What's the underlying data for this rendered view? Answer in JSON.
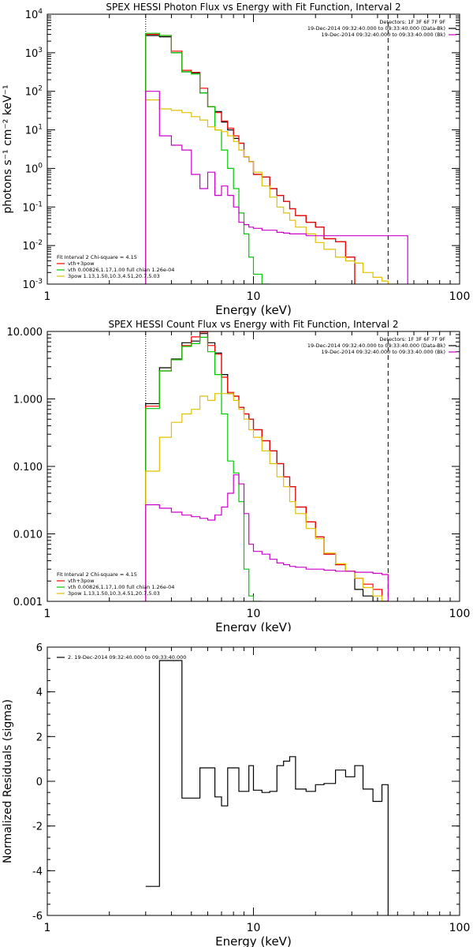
{
  "chart_data": [
    {
      "type": "line",
      "title": "SPEX HESSI Photon Flux vs Energy with Fit Function, Interval 2",
      "xlabel": "Energy (keV)",
      "ylabel": "photons s⁻¹ cm⁻² keV⁻¹",
      "xscale": "log",
      "yscale": "log",
      "xlim": [
        1,
        100
      ],
      "ylim": [
        0.001,
        10000
      ],
      "xticks": [
        {
          "v": 1,
          "label": "1"
        },
        {
          "v": 10,
          "label": "10"
        },
        {
          "v": 100,
          "label": "100"
        }
      ],
      "yticks": [
        {
          "v": 0.001,
          "base": "10",
          "exp": "-3"
        },
        {
          "v": 0.01,
          "base": "10",
          "exp": "-2"
        },
        {
          "v": 0.1,
          "base": "10",
          "exp": "-1"
        },
        {
          "v": 1,
          "base": "10",
          "exp": "0"
        },
        {
          "v": 10,
          "base": "10",
          "exp": "1"
        },
        {
          "v": 100,
          "base": "10",
          "exp": "2"
        },
        {
          "v": 1000,
          "base": "10",
          "exp": "3"
        },
        {
          "v": 10000,
          "base": "10",
          "exp": "4"
        }
      ],
      "vlines": [
        {
          "x": 3.0,
          "style": "dotted"
        },
        {
          "x": 45,
          "style": "dashed"
        }
      ],
      "header_lines": [
        "Detectors: 1F 3F 6F 7F 9F",
        "19-Dec-2014 09:32:40.000 to 09:33:40.000 (Data-Bk)",
        "19-Dec-2014 09:32:40.000 to 09:33:40.000 (Bk)"
      ],
      "header_colors": [
        "#000000",
        "#000000",
        "#cc00cc"
      ],
      "legend_lines": [
        "Fit Interval 2   Chi-square = 4.15",
        "vth+3pow",
        "vth 0.00826,1.17,1.00  full chian 1.26e-04",
        "3pow 1.13,1.50,10.3,4.51,20.7,5.03"
      ],
      "legend_colors": [
        "#000000",
        "#ff0000",
        "#00c800",
        "#e0c000"
      ],
      "edges": [
        3.0,
        3.5,
        4.0,
        4.5,
        5.0,
        5.5,
        6.0,
        6.5,
        7.0,
        7.5,
        8.0,
        8.5,
        9.0,
        9.5,
        10.0,
        11.0,
        12.0,
        13.0,
        14.0,
        15.0,
        16.0,
        18.0,
        20.0,
        22.0,
        25.0,
        28.0,
        31.0,
        34.0,
        38.0,
        42.0,
        45.0,
        50.0,
        56.0
      ],
      "series": [
        {
          "name": "data",
          "color": "#000000",
          "values": [
            2800,
            2600,
            1000,
            320,
            300,
            90,
            40,
            30,
            16,
            10,
            6,
            4.5,
            2,
            1.5,
            0.7,
            0.6,
            0.3,
            0.2,
            0.14,
            0.09,
            0.06,
            0.04,
            0.03,
            0.015,
            0.0125,
            0.005,
            null,
            null,
            null,
            null,
            null,
            null
          ]
        },
        {
          "name": "vth+3pow",
          "color": "#ff0000",
          "values": [
            3000,
            2800,
            1100,
            350,
            310,
            120,
            40,
            28,
            17,
            11,
            7,
            4.5,
            2,
            1.5,
            0.7,
            0.6,
            0.3,
            0.2,
            0.14,
            0.09,
            0.06,
            0.04,
            0.03,
            0.015,
            0.0125,
            0.005,
            null,
            null,
            null,
            null,
            null,
            null
          ]
        },
        {
          "name": "vth",
          "color": "#00c800",
          "values": [
            3200,
            2800,
            1000,
            320,
            280,
            90,
            40,
            10,
            3,
            1,
            0.3,
            0.07,
            0.02,
            0.005,
            0.0018,
            0.001,
            null,
            null,
            null,
            null,
            null,
            null,
            null,
            null,
            null,
            null,
            null,
            null,
            null,
            null,
            null,
            null
          ]
        },
        {
          "name": "3pow",
          "color": "#e0c000",
          "values": [
            60,
            35,
            32,
            28,
            22,
            18,
            12,
            10,
            9,
            7,
            5,
            3,
            2,
            1.5,
            0.8,
            0.35,
            0.18,
            0.1,
            0.07,
            0.045,
            0.03,
            0.02,
            0.012,
            0.008,
            0.005,
            0.004,
            0.0035,
            0.002,
            0.0015,
            0.0012,
            0.0009,
            null
          ]
        },
        {
          "name": "background",
          "color": "#cc00cc",
          "values": [
            100,
            7,
            4,
            3,
            0.7,
            0.3,
            0.8,
            0.2,
            0.35,
            0.2,
            0.1,
            0.04,
            0.035,
            0.03,
            0.028,
            0.025,
            0.025,
            0.022,
            0.021,
            0.02,
            0.02,
            0.018,
            0.018,
            0.018,
            0.018,
            0.018,
            0.018,
            0.018,
            0.018,
            0.018,
            0.018,
            0.018
          ]
        }
      ]
    },
    {
      "type": "line",
      "title": "SPEX HESSI Count Flux vs Energy with Fit Function, Interval 2",
      "xlabel": "Energy (keV)",
      "ylabel": "",
      "xscale": "log",
      "yscale": "log",
      "xlim": [
        1,
        100
      ],
      "ylim": [
        0.001,
        10
      ],
      "xticks": [
        {
          "v": 1,
          "label": "1"
        },
        {
          "v": 10,
          "label": "10"
        },
        {
          "v": 100,
          "label": "100"
        }
      ],
      "yticks": [
        {
          "v": 0.001,
          "label": "0.001"
        },
        {
          "v": 0.01,
          "label": "0.010"
        },
        {
          "v": 0.1,
          "label": "0.100"
        },
        {
          "v": 1,
          "label": "1.000"
        },
        {
          "v": 10,
          "label": "10.000"
        }
      ],
      "vlines": [
        {
          "x": 3.0,
          "style": "dotted"
        },
        {
          "x": 45,
          "style": "dashed"
        }
      ],
      "header_lines": [
        "Detectors: 1F 3F 6F 7F 9F",
        "19-Dec-2014 09:32:40.000 to 09:33:40.000 (Data-Bk)",
        "19-Dec-2014 09:32:40.000 to 09:33:40.000 (Bk)"
      ],
      "header_colors": [
        "#000000",
        "#000000",
        "#cc00cc"
      ],
      "legend_lines": [
        "Fit Interval 2   Chi-square = 4.15",
        "vth+3pow",
        "vth 0.00826,1.17,1.00  full chian 1.26e-04",
        "3pow 1.13,1.50,10.3,4.51,20.7,5.03"
      ],
      "legend_colors": [
        "#000000",
        "#ff0000",
        "#00c800",
        "#e0c000"
      ],
      "edges": [
        3.0,
        3.5,
        4.0,
        4.5,
        5.0,
        5.5,
        6.0,
        6.5,
        7.0,
        7.5,
        8.0,
        8.5,
        9.0,
        9.5,
        10.0,
        11.0,
        12.0,
        13.0,
        14.0,
        15.0,
        16.0,
        18.0,
        20.0,
        22.0,
        25.0,
        28.0,
        31.0,
        34.0,
        38.0,
        42.0,
        45.0
      ],
      "series": [
        {
          "name": "data",
          "color": "#000000",
          "values": [
            0.85,
            2.9,
            3.9,
            6.8,
            7.2,
            9.3,
            6.8,
            4.8,
            2.3,
            1.2,
            1.1,
            0.75,
            0.6,
            0.5,
            0.35,
            0.24,
            0.17,
            0.11,
            0.07,
            0.05,
            0.025,
            0.015,
            0.009,
            0.005,
            0.0035,
            0.0028,
            0.0015,
            0.0012,
            0.001,
            0.001
          ]
        },
        {
          "name": "vth+3pow",
          "color": "#ff0000",
          "values": [
            0.78,
            2.6,
            3.8,
            6.2,
            8.3,
            9.8,
            6.2,
            4.6,
            2.1,
            1.25,
            1.1,
            0.75,
            0.6,
            0.5,
            0.35,
            0.24,
            0.17,
            0.11,
            0.07,
            0.05,
            0.025,
            0.015,
            0.009,
            0.005,
            0.0035,
            0.0028,
            0.0022,
            0.0018,
            0.0015,
            0.001
          ]
        },
        {
          "name": "vth",
          "color": "#00c800",
          "values": [
            0.72,
            2.6,
            3.8,
            6.0,
            6.6,
            8.2,
            5.0,
            2.3,
            0.6,
            0.12,
            0.08,
            0.03,
            0.003,
            0.0012,
            0.001,
            null,
            null,
            null,
            null,
            null,
            null,
            null,
            null,
            null,
            null,
            null,
            null,
            null,
            null,
            null
          ]
        },
        {
          "name": "3pow",
          "color": "#e0c000",
          "values": [
            0.085,
            0.27,
            0.45,
            0.6,
            0.7,
            1.1,
            0.95,
            1.2,
            1.2,
            1.2,
            0.95,
            0.7,
            0.5,
            0.35,
            0.27,
            0.17,
            0.11,
            0.07,
            0.05,
            0.03,
            0.02,
            0.012,
            0.0085,
            0.0052,
            0.0036,
            0.0028,
            0.0022,
            0.0016,
            0.0012,
            0.001
          ]
        },
        {
          "name": "background",
          "color": "#cc00cc",
          "values": [
            0.027,
            0.024,
            0.021,
            0.019,
            0.018,
            0.017,
            0.016,
            0.019,
            0.025,
            0.04,
            0.075,
            0.055,
            0.02,
            0.007,
            0.0055,
            0.005,
            0.0042,
            0.0037,
            0.0035,
            0.0033,
            0.0032,
            0.003,
            0.003,
            0.0029,
            0.0028,
            0.0028,
            0.0027,
            0.0027,
            0.0026,
            0.0025
          ]
        }
      ]
    },
    {
      "type": "line",
      "title": "",
      "xlabel": "Energy (keV)",
      "ylabel": "Normalized Residuals (sigma)",
      "xscale": "log",
      "yscale": "linear",
      "xlim": [
        1,
        100
      ],
      "ylim": [
        -6,
        6
      ],
      "xticks": [
        {
          "v": 1,
          "label": "1"
        },
        {
          "v": 10,
          "label": "10"
        },
        {
          "v": 100,
          "label": "100"
        }
      ],
      "yticks": [
        {
          "v": -6,
          "label": "-6"
        },
        {
          "v": -4,
          "label": "-4"
        },
        {
          "v": -2,
          "label": "-2"
        },
        {
          "v": 0,
          "label": "0"
        },
        {
          "v": 2,
          "label": "2"
        },
        {
          "v": 4,
          "label": "4"
        },
        {
          "v": 6,
          "label": "6"
        }
      ],
      "legend_lines": [
        "2. 19-Dec-2014 09:32:40.000 to 09:33:40.000"
      ],
      "legend_colors": [
        "#000000"
      ],
      "edges": [
        3.0,
        3.5,
        4.0,
        4.5,
        5.0,
        5.5,
        6.0,
        6.5,
        7.0,
        7.5,
        8.0,
        8.5,
        9.0,
        9.5,
        10.0,
        11.0,
        12.0,
        13.0,
        14.0,
        15.0,
        16.0,
        18.0,
        20.0,
        22.0,
        25.0,
        28.0,
        31.0,
        34.0,
        38.0,
        42.0,
        45.0
      ],
      "series": [
        {
          "name": "residuals",
          "color": "#000000",
          "values": [
            -4.7,
            5.4,
            5.4,
            -0.75,
            -0.75,
            0.6,
            0.6,
            -0.7,
            -1.1,
            0.6,
            0.6,
            -0.45,
            -0.45,
            0.7,
            -0.4,
            -0.5,
            -0.45,
            0.7,
            0.9,
            1.1,
            -0.35,
            -0.45,
            -0.15,
            -0.1,
            0.5,
            0.2,
            0.7,
            -0.35,
            -0.9,
            -0.15
          ]
        }
      ]
    }
  ]
}
